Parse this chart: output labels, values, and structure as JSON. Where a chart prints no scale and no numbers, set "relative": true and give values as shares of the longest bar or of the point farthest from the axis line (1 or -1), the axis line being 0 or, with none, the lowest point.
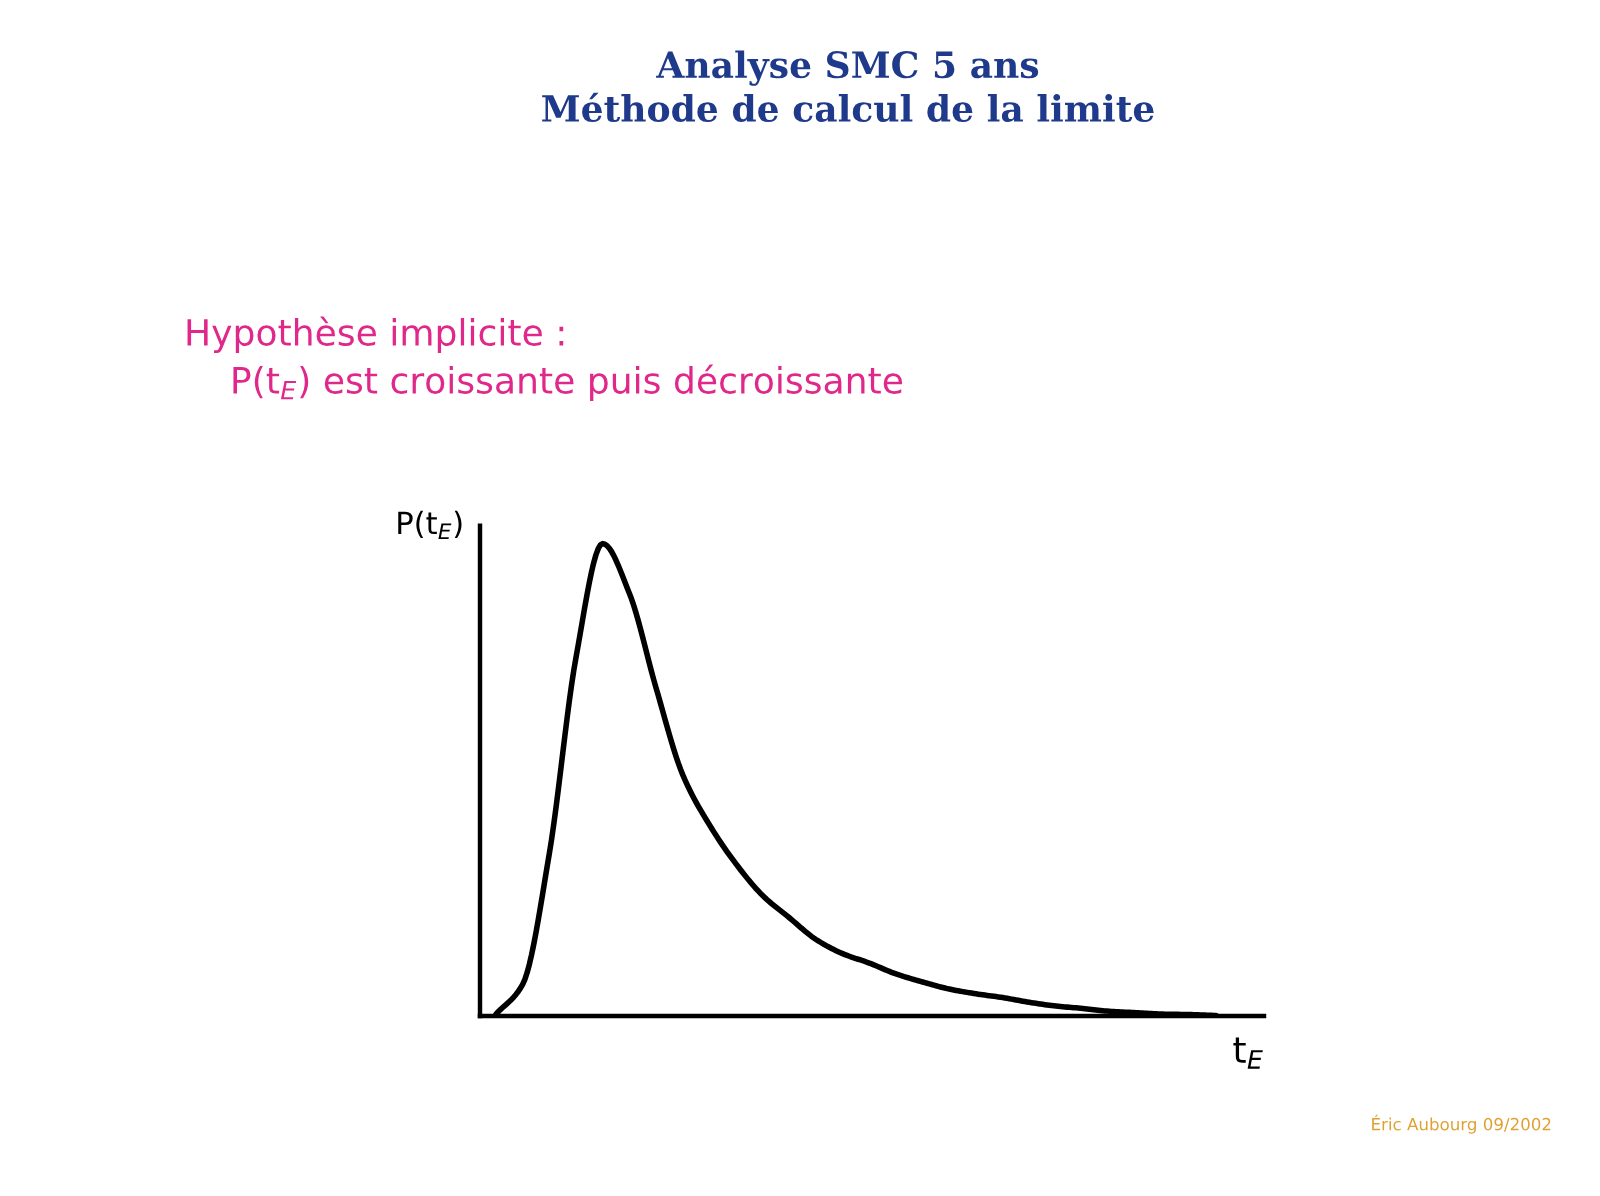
{
  "chart_data": {
    "type": "line",
    "title": "Analyse SMC 5 ans\nMéthode de calcul de la limite",
    "subtitle": "Hypothèse implicite :\n    P(t$_{E}$) est croissante puis décroissante",
    "ylabel": "P(t$_{E}$)",
    "xlabel": "t$_{E}$",
    "relative": true,
    "categories": [
      null,
      null,
      null,
      null,
      null,
      null,
      null,
      null,
      null,
      null,
      null,
      null,
      null,
      null,
      null,
      null,
      null,
      null,
      null,
      null,
      null,
      null,
      null,
      null,
      null,
      null,
      null,
      null
    ],
    "series": [
      {
        "color": "#000000",
        "values": [
          0.004,
          0.067,
          0.344,
          0.759,
          1.0,
          0.895,
          0.695,
          0.511,
          0.405,
          0.322,
          0.255,
          0.208,
          0.162,
          0.132,
          0.112,
          0.089,
          0.072,
          0.057,
          0.047,
          0.039,
          0.029,
          0.021,
          0.016,
          0.01,
          0.007,
          0.004,
          0.003,
          0.001
        ]
      }
    ],
    "annotations": [
      "Éric Aubourg 09/2002"
    ],
    "marker": "none",
    "line_style": "solid"
  }
}
